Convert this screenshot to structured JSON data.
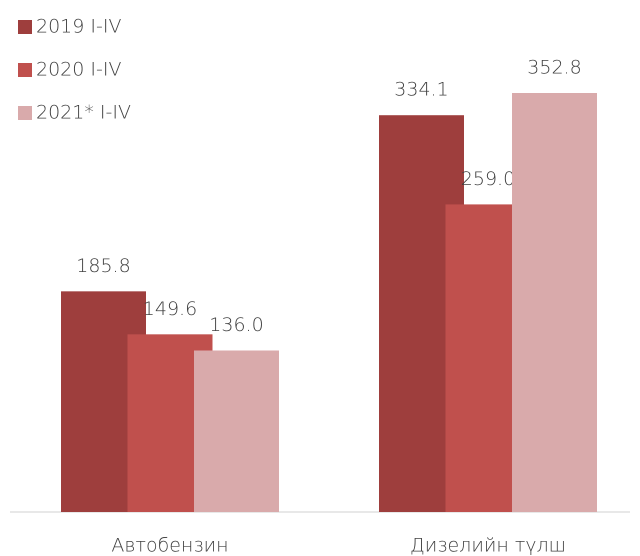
{
  "chart_data": {
    "type": "bar",
    "categories": [
      "Автобензин",
      "Дизелийн түлш"
    ],
    "series": [
      {
        "name": "2019 I-IV",
        "color": "#9e3e3d",
        "values": [
          185.8,
          334.1
        ],
        "value_labels": [
          "185.8",
          "334.1"
        ]
      },
      {
        "name": "2020 I-IV",
        "color": "#c0504d",
        "values": [
          149.6,
          259.0
        ],
        "value_labels": [
          "149.6",
          "259.0"
        ]
      },
      {
        "name": "2021* I-IV",
        "color": "#d9aaab",
        "values": [
          136.0,
          352.8
        ],
        "value_labels": [
          "136.0",
          "352.8"
        ]
      }
    ],
    "legend": "top-left"
  }
}
